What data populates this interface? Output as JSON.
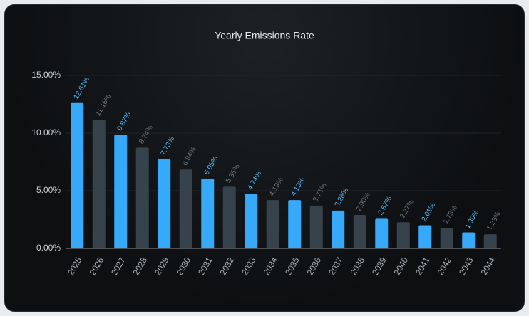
{
  "chart_data": {
    "type": "bar",
    "title": "Yearly Emissions Rate",
    "categories": [
      "2025",
      "2026",
      "2027",
      "2028",
      "2029",
      "2030",
      "2031",
      "2032",
      "2033",
      "2034",
      "2035",
      "2036",
      "2037",
      "2038",
      "2039",
      "2040",
      "2041",
      "2042",
      "2043",
      "2044"
    ],
    "values": [
      12.61,
      11.16,
      9.87,
      8.74,
      7.73,
      6.84,
      6.05,
      5.35,
      4.74,
      4.19,
      4.19,
      3.71,
      3.28,
      2.9,
      2.57,
      2.27,
      2.01,
      1.78,
      1.39,
      1.23
    ],
    "value_labels": [
      "12.61%",
      "11.16%",
      "9.87%",
      "8.74%",
      "7.73%",
      "6.84%",
      "6.05%",
      "5.35%",
      "4.74%",
      "4.19%",
      "4.19%",
      "3.71%",
      "3.28%",
      "2.90%",
      "2.57%",
      "2.27%",
      "2.01%",
      "1.78%",
      "1.39%",
      "1.23%"
    ],
    "colors": [
      "#36a9fb",
      "#36424c"
    ],
    "label_colors": [
      "#5cb8f7",
      "#6b7680"
    ],
    "ylim": [
      0,
      15
    ],
    "yticks": [
      {
        "value": 0,
        "label": "0.00%"
      },
      {
        "value": 5,
        "label": "5.00%"
      },
      {
        "value": 10,
        "label": "10.00%"
      },
      {
        "value": 15,
        "label": "15.00%"
      }
    ],
    "grid": true
  }
}
